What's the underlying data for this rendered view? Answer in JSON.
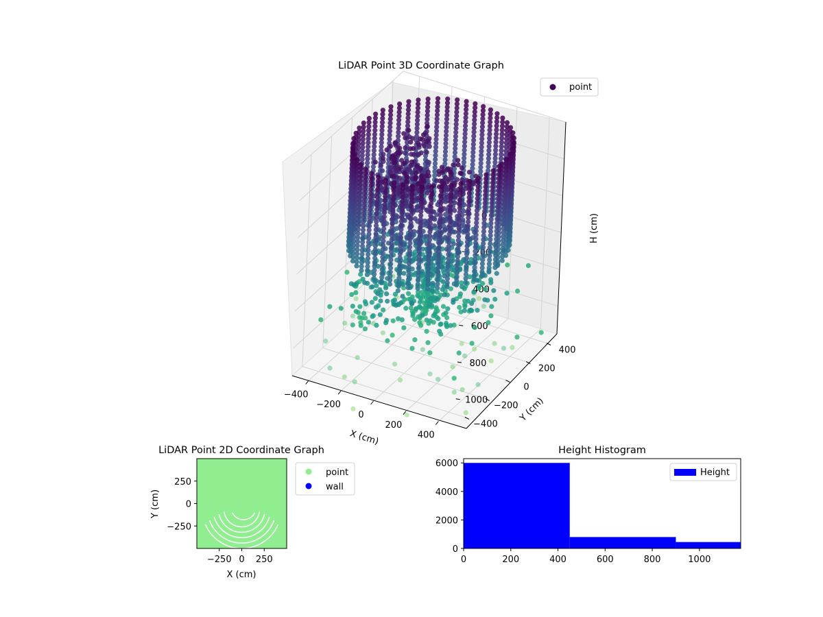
{
  "chart_data": [
    {
      "type": "scatter3d",
      "title": "LiDAR Point 3D Coordinate Graph",
      "xlabel": "X (cm)",
      "ylabel": "Y (cm)",
      "zlabel": "H (cm)",
      "x_ticks": [
        -400,
        -200,
        0,
        200,
        400
      ],
      "y_ticks": [
        -400,
        -200,
        0,
        200,
        400
      ],
      "z_ticks": [
        0,
        200,
        400,
        600,
        800,
        1000
      ],
      "xlim": [
        -500,
        500
      ],
      "ylim": [
        -500,
        500
      ],
      "zlim": [
        0,
        1150
      ],
      "z_inverted": true,
      "legend": {
        "placement": "top-right",
        "entries": [
          {
            "label": "point",
            "color": "#440154"
          }
        ]
      },
      "colormap": "viridis",
      "grid": true
    },
    {
      "type": "scatter",
      "title": "LiDAR Point 2D Coordinate Graph",
      "xlabel": "X (cm)",
      "ylabel": "Y (cm)",
      "x_ticks": [
        -250,
        0,
        250
      ],
      "y_ticks": [
        250,
        0,
        -250
      ],
      "xlim": [
        -500,
        500
      ],
      "ylim": [
        -500,
        500
      ],
      "legend": {
        "placement": "outside-right",
        "entries": [
          {
            "label": "point",
            "color": "#90ee90"
          },
          {
            "label": "wall",
            "color": "#0000ff"
          }
        ]
      },
      "grid": false
    },
    {
      "type": "histogram",
      "title": "Height Histogram",
      "bins": [
        {
          "x0": 0,
          "x1": 450,
          "count": 6000
        },
        {
          "x0": 450,
          "x1": 900,
          "count": 800
        },
        {
          "x0": 900,
          "x1": 1175,
          "count": 450
        }
      ],
      "x_ticks": [
        0,
        200,
        400,
        600,
        800,
        1000
      ],
      "y_ticks": [
        0,
        2000,
        4000,
        6000
      ],
      "xlim": [
        0,
        1175
      ],
      "ylim": [
        0,
        6300
      ],
      "color": "#0000ff",
      "legend": {
        "placement": "top-right",
        "entries": [
          {
            "label": "Height",
            "color": "#0000ff"
          }
        ]
      },
      "grid": false
    }
  ]
}
